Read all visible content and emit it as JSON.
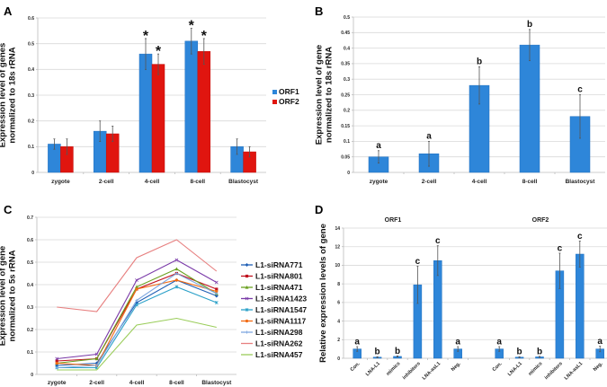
{
  "chart_data": [
    {
      "panel": "A",
      "type": "bar",
      "title": "",
      "xlabel": "",
      "ylabel": [
        "Expression level of genes",
        "normalized to 18s rRNA"
      ],
      "ylim": [
        0,
        0.6
      ],
      "yticks": [
        "0",
        "0.1",
        "0.2",
        "0.3",
        "0.4",
        "0.5",
        "0.6"
      ],
      "grid": true,
      "legend": "right",
      "categories": [
        "zygote",
        "2-cell",
        "4-cell",
        "8-cell",
        "Blastocyst"
      ],
      "series": [
        {
          "name": "ORF1",
          "color": "#2e86d9",
          "values": [
            0.11,
            0.16,
            0.46,
            0.51,
            0.1
          ],
          "errors": [
            0.02,
            0.04,
            0.06,
            0.05,
            0.03
          ],
          "annotations": [
            "",
            "",
            "*",
            "*",
            ""
          ]
        },
        {
          "name": "ORF2",
          "color": "#e0150f",
          "values": [
            0.1,
            0.15,
            0.42,
            0.47,
            0.08
          ],
          "errors": [
            0.03,
            0.03,
            0.04,
            0.05,
            0.02
          ],
          "annotations": [
            "",
            "",
            "*",
            "*",
            ""
          ]
        }
      ]
    },
    {
      "panel": "B",
      "type": "bar",
      "title": "",
      "xlabel": "",
      "ylabel": [
        "Expression level of gene",
        "normalized to 18s rRNA"
      ],
      "ylim": [
        0,
        0.5
      ],
      "yticks": [
        "0",
        "0.05",
        "0.1",
        "0.15",
        "0.2",
        "0.25",
        "0.3",
        "0.35",
        "0.4",
        "0.45",
        "0.5"
      ],
      "grid": true,
      "legend": "none",
      "categories": [
        "zygote",
        "2-cell",
        "4-cell",
        "8-cell",
        "Blastocyst"
      ],
      "series": [
        {
          "name": "expression",
          "color": "#2e86d9",
          "values": [
            0.05,
            0.06,
            0.28,
            0.41,
            0.18
          ],
          "errors": [
            0.02,
            0.04,
            0.06,
            0.05,
            0.07
          ],
          "annotations": [
            "a",
            "a",
            "b",
            "b",
            "c"
          ]
        }
      ]
    },
    {
      "panel": "C",
      "type": "line",
      "title": "",
      "xlabel": "",
      "ylabel": [
        "Expression level of gene",
        "normalized to 5s rRNA"
      ],
      "ylim": [
        0,
        0.7
      ],
      "yticks": [
        "0",
        "0.1",
        "0.2",
        "0.3",
        "0.4",
        "0.5",
        "0.6",
        "0.7"
      ],
      "grid": true,
      "legend": "right",
      "x": [
        "zygote",
        "2-cell",
        "4-cell",
        "8-cell",
        "Blastocyst"
      ],
      "series": [
        {
          "name": "L1-siRNA771",
          "color": "#1f5fb5",
          "marker": "diamond",
          "values": [
            0.04,
            0.05,
            0.32,
            0.42,
            0.35
          ]
        },
        {
          "name": "L1-siRNA801",
          "color": "#c0121e",
          "marker": "square",
          "values": [
            0.06,
            0.07,
            0.38,
            0.45,
            0.38
          ]
        },
        {
          "name": "L1-siRNA471",
          "color": "#6aa121",
          "marker": "triangle",
          "values": [
            0.05,
            0.07,
            0.39,
            0.47,
            0.36
          ]
        },
        {
          "name": "L1-siRNA1423",
          "color": "#7a3aa8",
          "marker": "x",
          "values": [
            0.07,
            0.09,
            0.42,
            0.51,
            0.41
          ]
        },
        {
          "name": "L1-siRNA1547",
          "color": "#2aa0c8",
          "marker": "star",
          "values": [
            0.03,
            0.03,
            0.31,
            0.39,
            0.32
          ]
        },
        {
          "name": "L1-siRNA1117",
          "color": "#f26a12",
          "marker": "circle",
          "values": [
            0.05,
            0.04,
            0.38,
            0.42,
            0.37
          ]
        },
        {
          "name": "L1-siRNA298",
          "color": "#7fa8e0",
          "marker": "plus",
          "values": [
            0.03,
            0.04,
            0.33,
            0.45,
            0.36
          ]
        },
        {
          "name": "L1-siRNA262",
          "color": "#e77f7f",
          "marker": "none",
          "values": [
            0.3,
            0.28,
            0.52,
            0.6,
            0.46
          ]
        },
        {
          "name": "L1-siRNA457",
          "color": "#9acd5a",
          "marker": "none",
          "values": [
            0.02,
            0.02,
            0.22,
            0.25,
            0.21
          ]
        }
      ]
    },
    {
      "panel": "D",
      "type": "bar",
      "title": "",
      "xlabel": "",
      "ylabel": [
        "Relative expression levels of gene"
      ],
      "ylim": [
        0,
        14
      ],
      "yticks": [
        "0",
        "2",
        "4",
        "6",
        "8",
        "10",
        "12",
        "14"
      ],
      "grid": true,
      "legend": "none",
      "groups": [
        {
          "label": "ORF1",
          "categories": [
            "Con.",
            "LNA-L1",
            "mimics",
            "inhibitors",
            "LNA-asL1",
            "Neg."
          ],
          "values": [
            1.0,
            0.12,
            0.2,
            7.9,
            10.5,
            1.0
          ],
          "errors": [
            0.25,
            0.05,
            0.05,
            2.0,
            1.6,
            0.25
          ],
          "annotations": [
            "a",
            "b",
            "b",
            "c",
            "c",
            "a"
          ]
        },
        {
          "label": "ORF2",
          "categories": [
            "Con.",
            "LNA-L1",
            "mimics",
            "inhibitors",
            "LNA-asL1",
            "Neg."
          ],
          "values": [
            1.0,
            0.12,
            0.15,
            9.4,
            11.2,
            1.0
          ],
          "errors": [
            0.25,
            0.05,
            0.05,
            1.9,
            1.4,
            0.3
          ],
          "annotations": [
            "a",
            "b",
            "b",
            "c",
            "c",
            "a"
          ]
        }
      ],
      "color": "#2e86d9"
    }
  ],
  "panels": {
    "labels": [
      "A",
      "B",
      "C",
      "D"
    ]
  }
}
